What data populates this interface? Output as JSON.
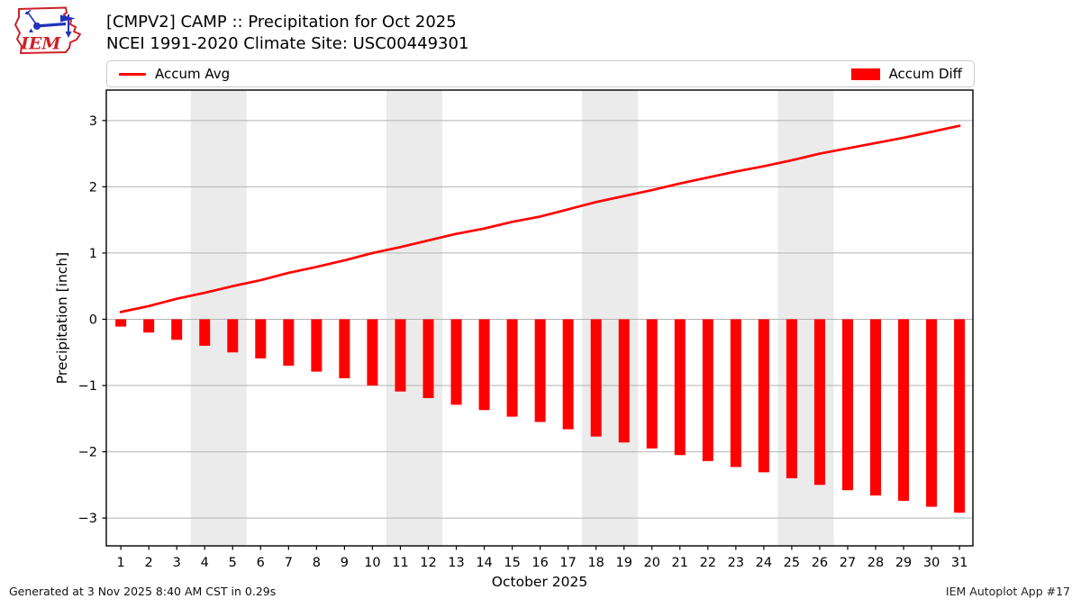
{
  "header": {
    "title_line1": "[CMPV2] CAMP :: Precipitation for Oct 2025",
    "title_line2": "NCEI 1991-2020 Climate Site: USC00449301",
    "logo_text": "IEM"
  },
  "legend": {
    "avg_label": "Accum Avg",
    "diff_label": "Accum Diff"
  },
  "footer": {
    "generated": "Generated at 3 Nov 2025 8:40 AM CST in 0.29s",
    "app": "IEM Autoplot App #17"
  },
  "colors": {
    "accent_red": "#ff0000",
    "grid": "#b3b3b3",
    "weekend_band": "#ebebeb",
    "axis_border": "#000000",
    "logo_red": "#cc2229",
    "logo_blue": "#2233bb"
  },
  "chart_data": {
    "type": "bar",
    "title": "[CMPV2] CAMP :: Precipitation for Oct 2025 — NCEI 1991-2020 Climate Site: USC00449301",
    "xlabel": "October 2025",
    "ylabel": "Precipitation [inch]",
    "x": [
      1,
      2,
      3,
      4,
      5,
      6,
      7,
      8,
      9,
      10,
      11,
      12,
      13,
      14,
      15,
      16,
      17,
      18,
      19,
      20,
      21,
      22,
      23,
      24,
      25,
      26,
      27,
      28,
      29,
      30,
      31
    ],
    "series": [
      {
        "name": "Accum Avg",
        "type": "line",
        "values": [
          0.11,
          0.2,
          0.31,
          0.4,
          0.5,
          0.59,
          0.7,
          0.79,
          0.89,
          1.0,
          1.09,
          1.19,
          1.29,
          1.37,
          1.47,
          1.55,
          1.66,
          1.77,
          1.86,
          1.95,
          2.05,
          2.14,
          2.23,
          2.31,
          2.4,
          2.5,
          2.58,
          2.66,
          2.74,
          2.83,
          2.92
        ]
      },
      {
        "name": "Accum Diff",
        "type": "bar",
        "values": [
          -0.11,
          -0.2,
          -0.31,
          -0.4,
          -0.5,
          -0.59,
          -0.7,
          -0.79,
          -0.89,
          -1.0,
          -1.09,
          -1.19,
          -1.29,
          -1.37,
          -1.47,
          -1.55,
          -1.66,
          -1.77,
          -1.86,
          -1.95,
          -2.05,
          -2.14,
          -2.23,
          -2.31,
          -2.4,
          -2.5,
          -2.58,
          -2.66,
          -2.74,
          -2.83,
          -2.92
        ]
      }
    ],
    "ylim": [
      -3.42,
      3.46
    ],
    "xlim": [
      0.48,
      31.48
    ],
    "yticks": [
      -3,
      -2,
      -1,
      0,
      1,
      2,
      3
    ],
    "weekend_bands": [
      [
        3.5,
        5.5
      ],
      [
        10.5,
        12.5
      ],
      [
        17.5,
        19.5
      ],
      [
        24.5,
        26.5
      ]
    ],
    "grid": true,
    "legend_position": "top"
  }
}
